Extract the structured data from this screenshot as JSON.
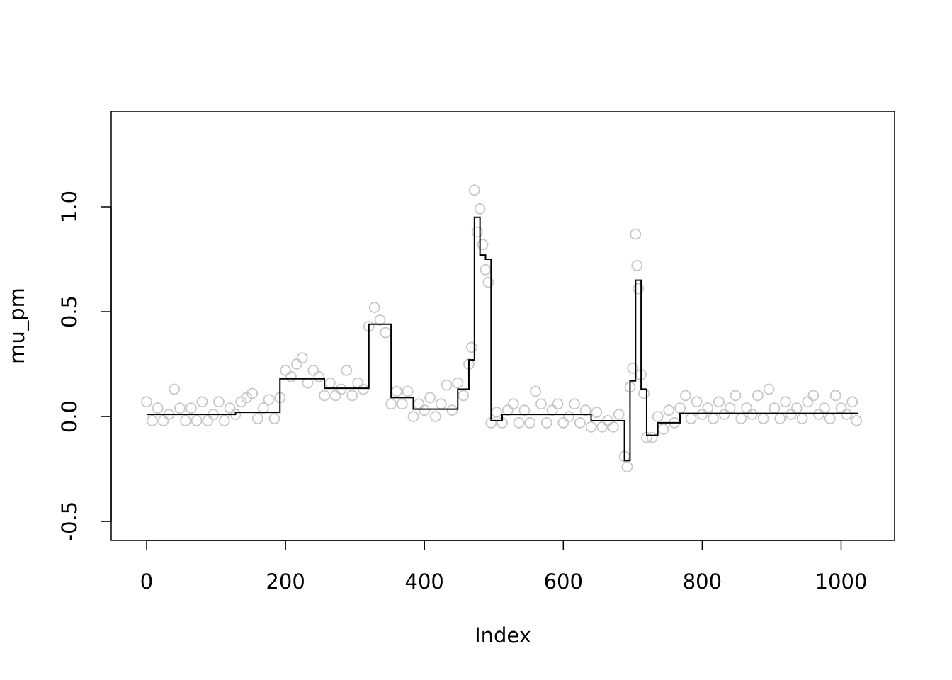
{
  "chart_data": {
    "type": "scatter",
    "xlabel": "Index",
    "ylabel": "mu_pm",
    "xlim": [
      -51,
      1077
    ],
    "ylim": [
      -0.591,
      1.456
    ],
    "xticks": [
      0,
      200,
      400,
      600,
      800,
      1000
    ],
    "yticks": [
      -0.5,
      {
        "value": 0,
        "label": "0.0"
      },
      0.5,
      {
        "value": 1,
        "label": "1.0"
      }
    ],
    "series": [
      {
        "mode": "points",
        "color": "#c8c8c8",
        "x": [
          0,
          8,
          16,
          24,
          32,
          40,
          48,
          56,
          64,
          72,
          80,
          88,
          96,
          104,
          112,
          120,
          128,
          136,
          144,
          152,
          160,
          168,
          176,
          184,
          192,
          200,
          208,
          216,
          224,
          232,
          240,
          248,
          256,
          264,
          272,
          280,
          288,
          296,
          304,
          312,
          320,
          328,
          336,
          344,
          352,
          360,
          368,
          376,
          384,
          392,
          400,
          408,
          416,
          424,
          432,
          440,
          448,
          456,
          464,
          468,
          472,
          476,
          480,
          484,
          488,
          492,
          496,
          504,
          512,
          520,
          528,
          536,
          544,
          552,
          560,
          568,
          576,
          584,
          592,
          600,
          608,
          616,
          624,
          632,
          640,
          648,
          656,
          664,
          672,
          680,
          688,
          692,
          696,
          700,
          704,
          706,
          708,
          712,
          716,
          720,
          728,
          736,
          744,
          752,
          760,
          768,
          776,
          784,
          792,
          800,
          808,
          816,
          824,
          832,
          840,
          848,
          856,
          864,
          872,
          880,
          888,
          896,
          904,
          912,
          920,
          928,
          936,
          944,
          952,
          960,
          968,
          976,
          984,
          992,
          1000,
          1008,
          1016,
          1022
        ],
        "values": [
          0.07,
          -0.02,
          0.04,
          -0.02,
          0.01,
          0.13,
          0.04,
          -0.02,
          0.04,
          -0.02,
          0.07,
          -0.02,
          0.01,
          0.07,
          -0.02,
          0.04,
          0.01,
          0.07,
          0.09,
          0.11,
          -0.01,
          0.04,
          0.08,
          -0.01,
          0.09,
          0.22,
          0.19,
          0.25,
          0.28,
          0.16,
          0.22,
          0.19,
          0.1,
          0.16,
          0.1,
          0.13,
          0.22,
          0.1,
          0.16,
          0.13,
          0.43,
          0.52,
          0.46,
          0.4,
          0.06,
          0.12,
          0.06,
          0.12,
          0.0,
          0.06,
          0.03,
          0.09,
          0.0,
          0.06,
          0.15,
          0.03,
          0.16,
          0.1,
          0.25,
          0.33,
          1.08,
          0.88,
          0.99,
          0.82,
          0.7,
          0.64,
          -0.03,
          0.02,
          -0.03,
          0.03,
          0.06,
          -0.03,
          0.03,
          -0.03,
          0.12,
          0.06,
          -0.03,
          0.03,
          0.06,
          -0.03,
          0.0,
          0.06,
          -0.03,
          0.03,
          -0.05,
          0.02,
          -0.05,
          -0.02,
          -0.05,
          0.01,
          -0.19,
          -0.24,
          0.14,
          0.23,
          0.87,
          0.72,
          0.61,
          0.2,
          0.11,
          -0.1,
          -0.1,
          0.0,
          -0.06,
          0.03,
          -0.03,
          0.04,
          0.1,
          -0.01,
          0.07,
          0.01,
          0.04,
          -0.01,
          0.07,
          0.01,
          0.04,
          0.1,
          -0.01,
          0.04,
          0.01,
          0.1,
          -0.01,
          0.13,
          0.04,
          -0.01,
          0.07,
          0.01,
          0.04,
          -0.01,
          0.07,
          0.1,
          0.01,
          0.04,
          -0.01,
          0.1,
          0.04,
          0.01,
          0.07,
          -0.02
        ]
      },
      {
        "mode": "step",
        "color": "#000000",
        "x": [
          0,
          128,
          192,
          256,
          320,
          352,
          384,
          448,
          464,
          472,
          480,
          488,
          496,
          512,
          640,
          688,
          696,
          704,
          712,
          720,
          736,
          768,
          1024
        ],
        "values": [
          0.01,
          0.02,
          0.18,
          0.135,
          0.44,
          0.09,
          0.035,
          0.13,
          0.27,
          0.95,
          0.77,
          0.75,
          -0.02,
          0.01,
          -0.02,
          -0.21,
          0.17,
          0.65,
          0.13,
          -0.09,
          -0.03,
          0.015,
          0.015
        ]
      }
    ]
  }
}
